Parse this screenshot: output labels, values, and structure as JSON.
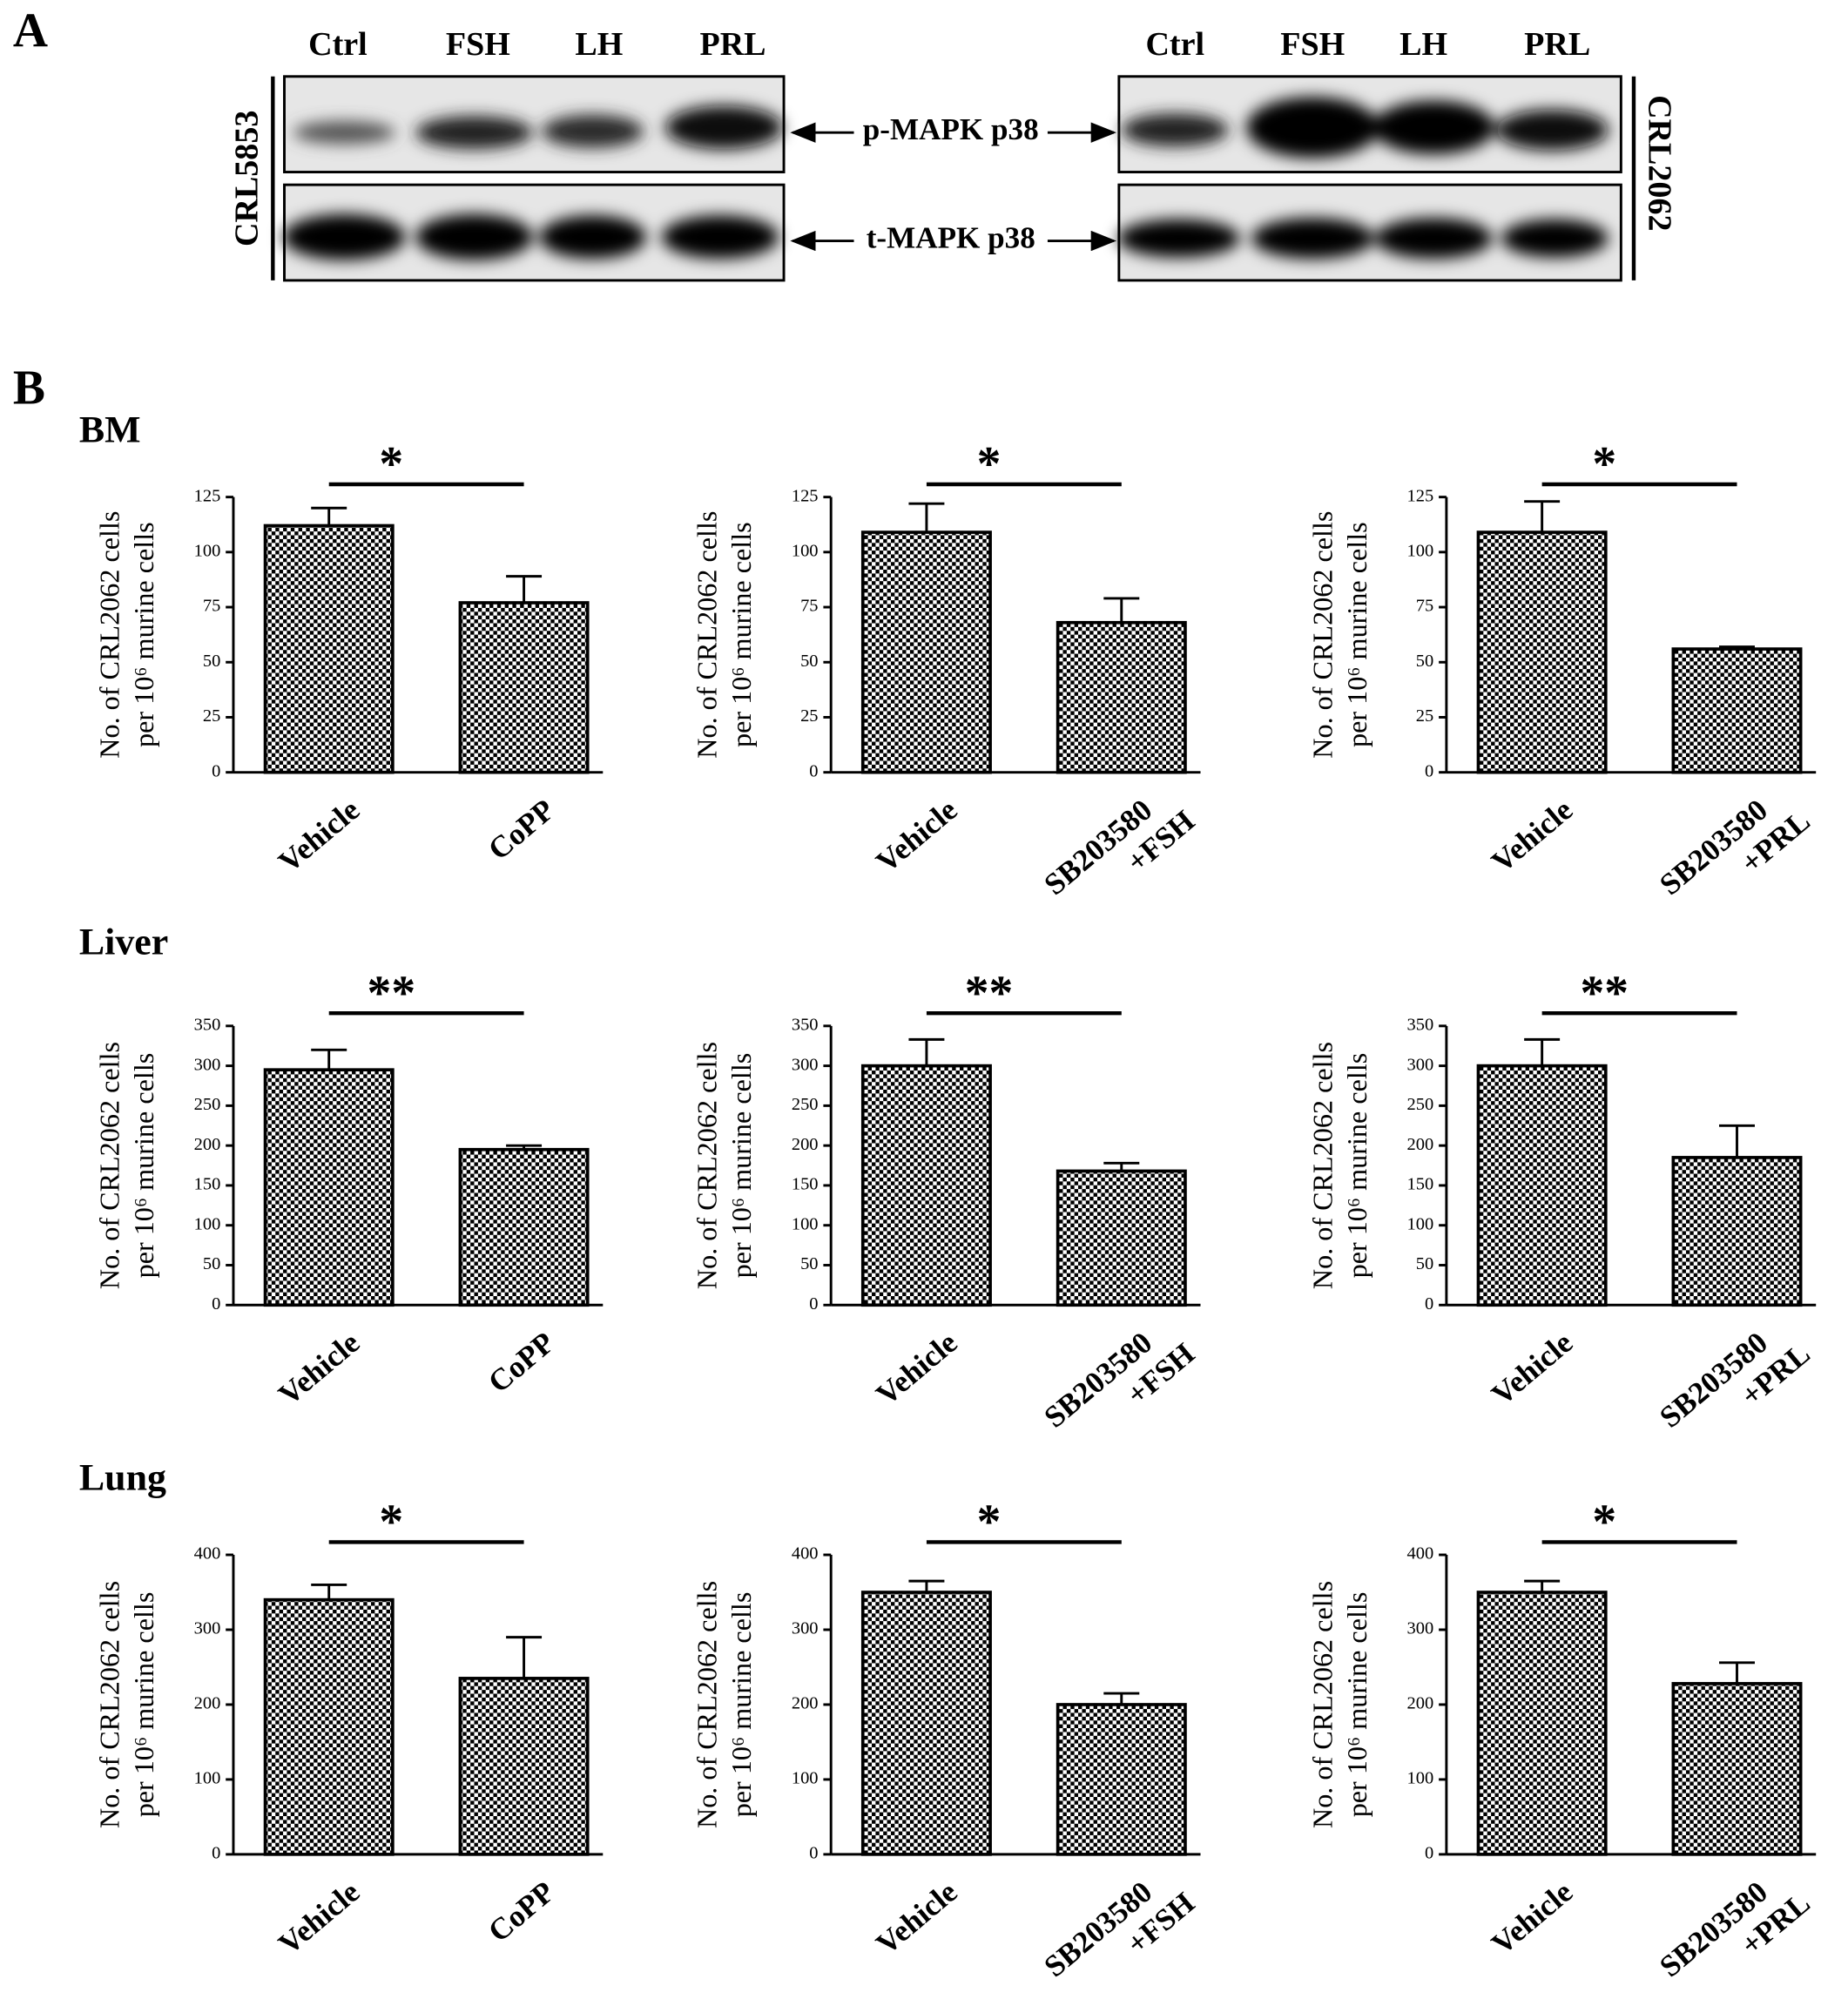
{
  "panels": {
    "a": "A",
    "b": "B"
  },
  "blot": {
    "left_lanes": [
      "Ctrl",
      "FSH",
      "LH",
      "PRL"
    ],
    "right_lanes": [
      "Ctrl",
      "FSH",
      "LH",
      "PRL"
    ],
    "left_cell": "CRL5853",
    "right_cell": "CRL2062",
    "row_1": "p-MAPK p38",
    "row_2": "t-MAPK p38"
  },
  "rows": [
    "BM",
    "Liver",
    "Lung"
  ],
  "chart_data": [
    {
      "type": "bar",
      "ylabel": [
        "No. of  CRL2062 cells",
        "per 10⁶ murine cells"
      ],
      "categories": [
        "Vehicle",
        "CoPP"
      ],
      "values": [
        112,
        77
      ],
      "errors": [
        8,
        12
      ],
      "ylim": [
        0,
        125
      ],
      "yticks": [
        0,
        25,
        50,
        75,
        100,
        125
      ],
      "annotation": "*"
    },
    {
      "type": "bar",
      "ylabel": [
        "No. of  CRL2062 cells",
        "per 10⁶ murine cells"
      ],
      "categories": [
        "Vehicle",
        "SB203580 +FSH"
      ],
      "values": [
        109,
        68
      ],
      "errors": [
        13,
        11
      ],
      "ylim": [
        0,
        125
      ],
      "yticks": [
        0,
        25,
        50,
        75,
        100,
        125
      ],
      "annotation": "*"
    },
    {
      "type": "bar",
      "ylabel": [
        "No. of  CRL2062 cells",
        "per 10⁶ murine cells"
      ],
      "categories": [
        "Vehicle",
        "SB203580 +PRL"
      ],
      "values": [
        109,
        56
      ],
      "errors": [
        14,
        1
      ],
      "ylim": [
        0,
        125
      ],
      "yticks": [
        0,
        25,
        50,
        75,
        100,
        125
      ],
      "annotation": "*"
    },
    {
      "type": "bar",
      "ylabel": [
        "No. of  CRL2062 cells",
        "per 10⁶ murine cells"
      ],
      "categories": [
        "Vehicle",
        "CoPP"
      ],
      "values": [
        295,
        195
      ],
      "errors": [
        25,
        5
      ],
      "ylim": [
        0,
        350
      ],
      "yticks": [
        0,
        50,
        100,
        150,
        200,
        250,
        300,
        350
      ],
      "annotation": "**"
    },
    {
      "type": "bar",
      "ylabel": [
        "No. of  CRL2062 cells",
        "per 10⁶ murine cells"
      ],
      "categories": [
        "Vehicle",
        "SB203580 +FSH"
      ],
      "values": [
        300,
        168
      ],
      "errors": [
        33,
        10
      ],
      "ylim": [
        0,
        350
      ],
      "yticks": [
        0,
        50,
        100,
        150,
        200,
        250,
        300,
        350
      ],
      "annotation": "**"
    },
    {
      "type": "bar",
      "ylabel": [
        "No. of  CRL2062 cells",
        "per 10⁶ murine cells"
      ],
      "categories": [
        "Vehicle",
        "SB203580 +PRL"
      ],
      "values": [
        300,
        185
      ],
      "errors": [
        33,
        40
      ],
      "ylim": [
        0,
        350
      ],
      "yticks": [
        0,
        50,
        100,
        150,
        200,
        250,
        300,
        350
      ],
      "annotation": "**"
    },
    {
      "type": "bar",
      "ylabel": [
        "No. of  CRL2062 cells",
        "per 10⁶ murine cells"
      ],
      "categories": [
        "Vehicle",
        "CoPP"
      ],
      "values": [
        340,
        235
      ],
      "errors": [
        20,
        55
      ],
      "ylim": [
        0,
        400
      ],
      "yticks": [
        0,
        100,
        200,
        300,
        400
      ],
      "annotation": "*"
    },
    {
      "type": "bar",
      "ylabel": [
        "No. of  CRL2062 cells",
        "per 10⁶ murine cells"
      ],
      "categories": [
        "Vehicle",
        "SB203580 +FSH"
      ],
      "values": [
        350,
        200
      ],
      "errors": [
        15,
        15
      ],
      "ylim": [
        0,
        400
      ],
      "yticks": [
        0,
        100,
        200,
        300,
        400
      ],
      "annotation": "*"
    },
    {
      "type": "bar",
      "ylabel": [
        "No. of  CRL2062 cells",
        "per 10⁶ murine cells"
      ],
      "categories": [
        "Vehicle",
        "SB203580 +PRL"
      ],
      "values": [
        350,
        228
      ],
      "errors": [
        15,
        28
      ],
      "ylim": [
        0,
        400
      ],
      "yticks": [
        0,
        100,
        200,
        300,
        400
      ],
      "annotation": "*"
    }
  ]
}
